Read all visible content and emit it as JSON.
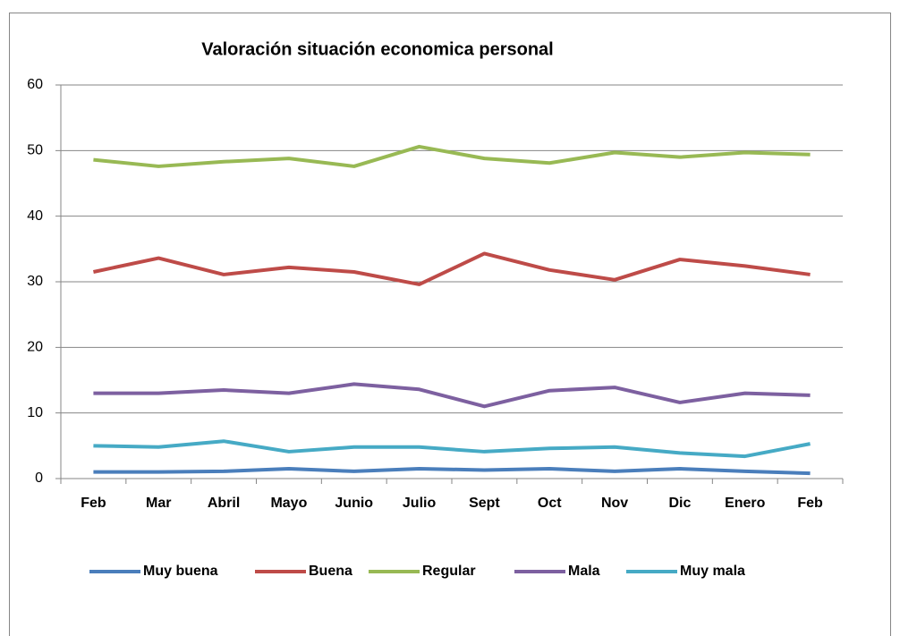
{
  "chart_data": {
    "type": "line",
    "title": "Valoración situación economica personal",
    "categories": [
      "Feb",
      "Mar",
      "Abril",
      "Mayo",
      "Junio",
      "Julio",
      "Sept",
      "Oct",
      "Nov",
      "Dic",
      "Enero",
      "Feb"
    ],
    "series": [
      {
        "name": "Muy buena",
        "color": "#4a7ebb",
        "values": [
          1.0,
          1.0,
          1.1,
          1.5,
          1.1,
          1.5,
          1.3,
          1.5,
          1.1,
          1.5,
          1.1,
          0.8
        ]
      },
      {
        "name": "Buena",
        "color": "#be4b48",
        "values": [
          31.5,
          33.6,
          31.1,
          32.2,
          31.5,
          29.6,
          34.3,
          31.8,
          30.3,
          33.4,
          32.4,
          31.1
        ]
      },
      {
        "name": "Regular",
        "color": "#98b954",
        "values": [
          48.6,
          47.6,
          48.3,
          48.8,
          47.6,
          50.6,
          48.8,
          48.1,
          49.7,
          49.0,
          49.7,
          49.4
        ]
      },
      {
        "name": "Mala",
        "color": "#7d60a0",
        "values": [
          13.0,
          13.0,
          13.5,
          13.0,
          14.4,
          13.6,
          11.0,
          13.4,
          13.9,
          11.6,
          13.0,
          12.7
        ]
      },
      {
        "name": "Muy mala",
        "color": "#46aac5",
        "values": [
          5.0,
          4.8,
          5.7,
          4.1,
          4.8,
          4.8,
          4.1,
          4.6,
          4.8,
          3.9,
          3.4,
          5.3
        ]
      }
    ],
    "ylim": [
      0,
      60
    ],
    "yticks": [
      0,
      10,
      20,
      30,
      40,
      50,
      60
    ],
    "grid": true,
    "legend": "bottom"
  }
}
